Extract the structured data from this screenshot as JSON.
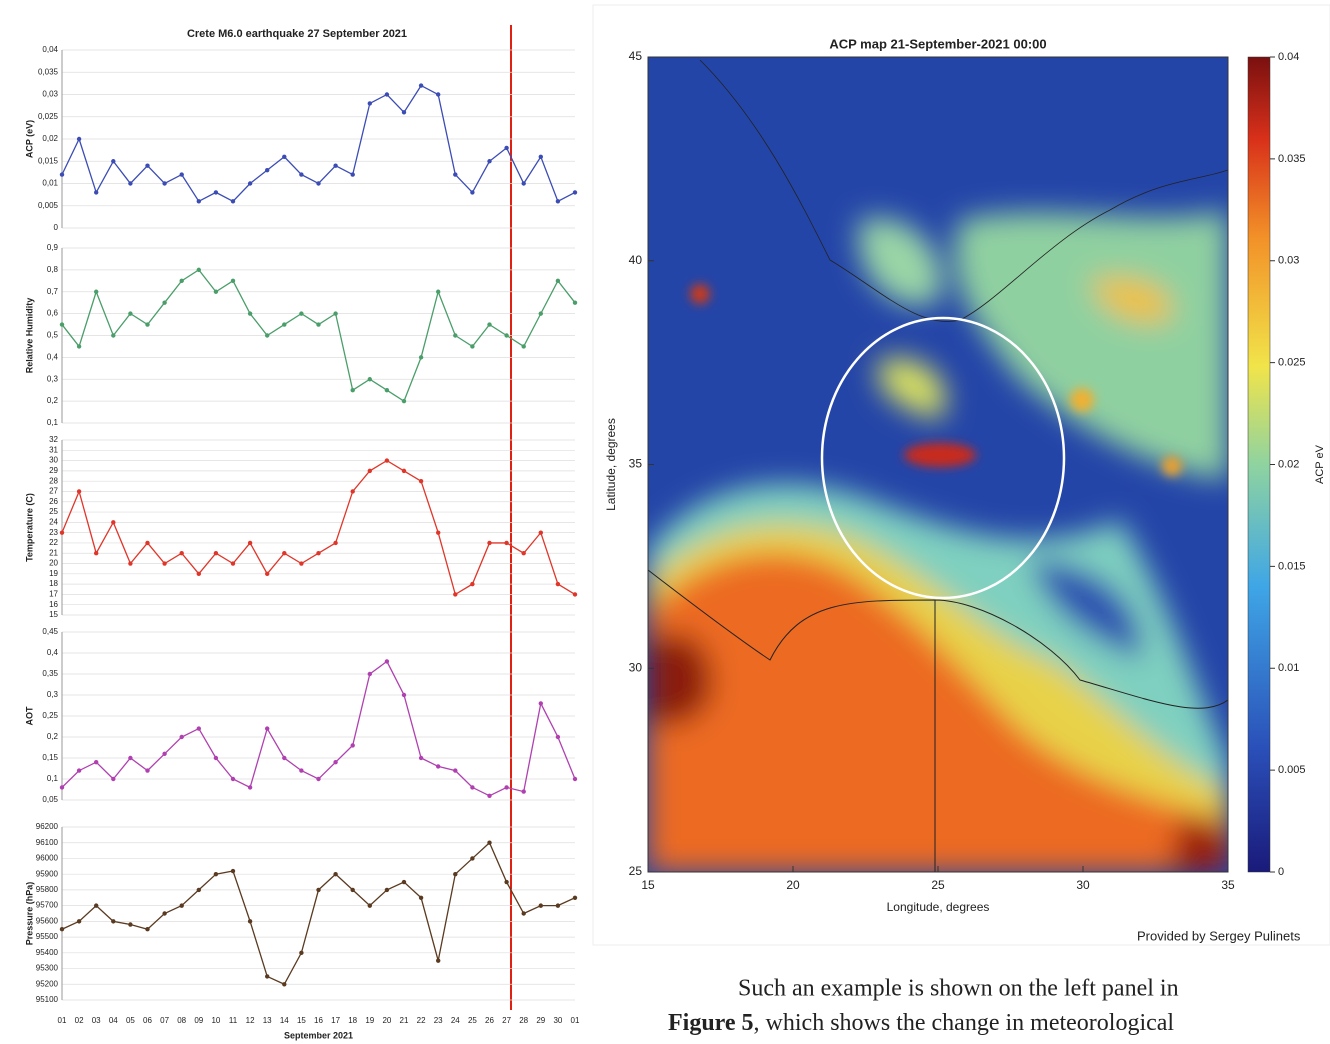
{
  "chart_data": [
    {
      "type": "line",
      "title": "Crete M6.0 earthquake 27 September 2021",
      "y_label": "ACP (eV)",
      "color": "#3b4cb5",
      "ylim": [
        0,
        0.04
      ],
      "yticks": [
        0,
        {
          "value": 0.005,
          "label": "0,005"
        },
        {
          "value": 0.01,
          "label": "0,01"
        },
        {
          "value": 0.015,
          "label": "0,015"
        },
        {
          "value": 0.02,
          "label": "0,02"
        },
        {
          "value": 0.025,
          "label": "0,025"
        },
        {
          "value": 0.03,
          "label": "0,03"
        },
        {
          "value": 0.035,
          "label": "0,035"
        },
        {
          "value": 0.04,
          "label": "0,04"
        }
      ],
      "values": [
        0.012,
        0.02,
        0.008,
        0.015,
        0.01,
        0.014,
        0.01,
        0.012,
        0.006,
        0.008,
        0.006,
        0.01,
        0.013,
        0.016,
        0.012,
        0.01,
        0.014,
        0.012,
        0.028,
        0.03,
        0.026,
        0.032,
        0.03,
        0.012,
        0.008,
        0.015,
        0.018,
        0.01,
        0.016,
        0.006,
        0.008
      ]
    },
    {
      "type": "line",
      "y_label": "Relative Humidity",
      "color": "#4a9e6a",
      "ylim": [
        0.1,
        0.9
      ],
      "yticks": [
        {
          "value": 0.1,
          "label": "0,1"
        },
        {
          "value": 0.2,
          "label": "0,2"
        },
        {
          "value": 0.3,
          "label": "0,3"
        },
        {
          "value": 0.4,
          "label": "0,4"
        },
        {
          "value": 0.5,
          "label": "0,5"
        },
        {
          "value": 0.6,
          "label": "0,6"
        },
        {
          "value": 0.7,
          "label": "0,7"
        },
        {
          "value": 0.8,
          "label": "0,8"
        },
        {
          "value": 0.9,
          "label": "0,9"
        }
      ],
      "values": [
        0.55,
        0.45,
        0.7,
        0.5,
        0.6,
        0.55,
        0.65,
        0.75,
        0.8,
        0.7,
        0.75,
        0.6,
        0.5,
        0.55,
        0.6,
        0.55,
        0.6,
        0.25,
        0.3,
        0.25,
        0.2,
        0.4,
        0.7,
        0.5,
        0.45,
        0.55,
        0.5,
        0.45,
        0.6,
        0.75,
        0.65
      ]
    },
    {
      "type": "line",
      "y_label": "Temperature (C)",
      "color": "#e0362a",
      "ylim": [
        15,
        32
      ],
      "yticks": [
        15,
        16,
        17,
        18,
        19,
        20,
        21,
        22,
        23,
        24,
        25,
        26,
        27,
        28,
        29,
        30,
        31,
        32
      ],
      "values": [
        23,
        27,
        21,
        24,
        20,
        22,
        20,
        21,
        19,
        21,
        20,
        22,
        19,
        21,
        20,
        21,
        22,
        27,
        29,
        30,
        29,
        28,
        23,
        17,
        18,
        22,
        22,
        21,
        23,
        18,
        17
      ]
    },
    {
      "type": "line",
      "y_label": "AOT",
      "color": "#b040b0",
      "ylim": [
        0.05,
        0.45
      ],
      "yticks": [
        {
          "value": 0.05,
          "label": "0,05"
        },
        {
          "value": 0.1,
          "label": "0,1"
        },
        {
          "value": 0.15,
          "label": "0,15"
        },
        {
          "value": 0.2,
          "label": "0,2"
        },
        {
          "value": 0.25,
          "label": "0,25"
        },
        {
          "value": 0.3,
          "label": "0,3"
        },
        {
          "value": 0.35,
          "label": "0,35"
        },
        {
          "value": 0.4,
          "label": "0,4"
        },
        {
          "value": 0.45,
          "label": "0,45"
        }
      ],
      "values": [
        0.08,
        0.12,
        0.14,
        0.1,
        0.15,
        0.12,
        0.16,
        0.2,
        0.22,
        0.15,
        0.1,
        0.08,
        0.22,
        0.15,
        0.12,
        0.1,
        0.14,
        0.18,
        0.35,
        0.38,
        0.3,
        0.15,
        0.13,
        0.12,
        0.08,
        0.06,
        0.08,
        0.07,
        0.28,
        0.2,
        0.1
      ]
    },
    {
      "type": "line",
      "y_label": "Pressure (hPa)",
      "x_label": "September 2021",
      "color": "#5a3a20",
      "ylim": [
        95100,
        96200
      ],
      "yticks": [
        95100,
        95200,
        95300,
        95400,
        95500,
        95600,
        95700,
        95800,
        95900,
        96000,
        96100,
        96200
      ],
      "categories": [
        "01",
        "02",
        "03",
        "04",
        "05",
        "06",
        "07",
        "08",
        "09",
        "10",
        "11",
        "12",
        "13",
        "14",
        "15",
        "16",
        "17",
        "18",
        "19",
        "20",
        "21",
        "22",
        "23",
        "24",
        "25",
        "26",
        "27",
        "28",
        "29",
        "30",
        "01"
      ],
      "values": [
        95550,
        95600,
        95700,
        95600,
        95580,
        95550,
        95650,
        95700,
        95800,
        95900,
        95920,
        95600,
        95250,
        95200,
        95400,
        95800,
        95900,
        95800,
        95700,
        95800,
        95850,
        95750,
        95350,
        95900,
        96000,
        96100,
        95850,
        95650,
        95700,
        95700,
        95750
      ]
    },
    {
      "type": "map",
      "title": "ACP map 21-September-2021 00:00",
      "x_label": "Longitude, degrees",
      "y_label": "Latitude, degrees",
      "xlim": [
        15,
        35
      ],
      "xticks": [
        15,
        20,
        25,
        30,
        35
      ],
      "ylim": [
        25,
        45
      ],
      "yticks": [
        25,
        30,
        35,
        40,
        45
      ],
      "colorbar": {
        "label": "ACP eV",
        "lim": [
          0,
          0.04
        ],
        "ticks": [
          0,
          0.005,
          0.01,
          0.015,
          0.02,
          0.025,
          0.03,
          0.035,
          0.04
        ]
      }
    }
  ],
  "caption": "Provided by Sergey Pulinets",
  "paragraph": {
    "line1": "Such an example is shown on the left panel in",
    "figure_ref": "Figure 5",
    "line2_rest": ", which shows the change in meteorological"
  }
}
